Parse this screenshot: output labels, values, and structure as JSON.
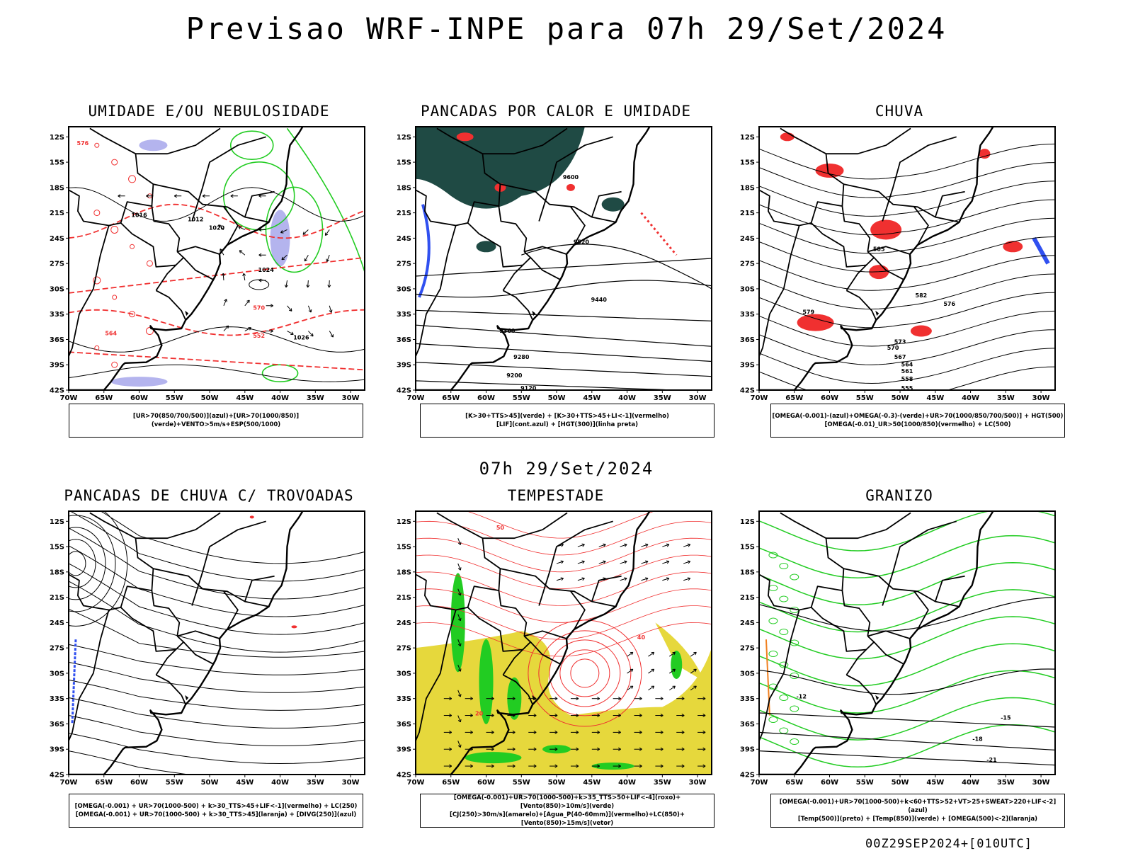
{
  "title": "Previsao WRF-INPE  para 07h 29/Set/2024",
  "mid_title": "07h 29/Set/2024",
  "footer": "00Z29SEP2024+[010UTC]",
  "axes": {
    "lat_labels": [
      "12S",
      "15S",
      "18S",
      "21S",
      "24S",
      "27S",
      "30S",
      "33S",
      "36S",
      "39S",
      "42S"
    ],
    "lon_labels": [
      "70W",
      "65W",
      "60W",
      "55W",
      "50W",
      "45W",
      "40W",
      "35W",
      "30W"
    ]
  },
  "panels": [
    {
      "title": "UMIDADE E/OU NEBULOSIDADE",
      "legend": [
        "[UR>70(850/700/500)](azul)+[UR>70(1000/850)](verde)+VENTO>5m/s+ESP(500/1000)"
      ],
      "contour_labels": [
        "1012",
        "1016",
        "1020",
        "1024",
        "1026",
        "564",
        "570",
        "576",
        "552"
      ]
    },
    {
      "title": "PANCADAS POR CALOR E UMIDADE",
      "legend": [
        "[K>30+TTS>45](verde) + [K>30+TTS>45+LI<-1](vermelho)",
        "[LIF](cont.azul) + [HGT(300)](linha preta)"
      ],
      "contour_labels": [
        "9600",
        "9520",
        "9440",
        "9360",
        "9280",
        "9200",
        "9120"
      ]
    },
    {
      "title": "CHUVA",
      "legend": [
        "[OMEGA(-0.001)-(azul)+OMEGA(-0.3)-(verde)+UR>70(1000/850/700/500)] + HGT(500)",
        "[OMEGA(-0.01)_UR>50(1000/850)(vermelho) + LC(500)"
      ],
      "contour_labels": [
        "585",
        "582",
        "579",
        "576",
        "573",
        "570",
        "567",
        "564",
        "561",
        "558",
        "555"
      ]
    },
    {
      "title": "PANCADAS DE CHUVA C/ TROVOADAS",
      "legend": [
        "[OMEGA(-0.001) + UR>70(1000-500) + k>30_TTS>45+LIF<-1](vermelho) + LC(250)",
        "[OMEGA(-0.001) + UR>70(1000-500) + k>30_TTS>45](laranja) + [DIVG(250)](azul)"
      ],
      "contour_labels": []
    },
    {
      "title": "TEMPESTADE",
      "legend": [
        "[OMEGA(-0.001)+UR>70(1000-500)+k>35_TTS>50+LIF<-4](roxo)+[Vento(850)>10m/s](verde)",
        "[CJ(250)>30m/s](amarelo)+[Agua_P(40-60mm)](vermelho)+LC(850)+[Vento(850)>15m/s](vetor)"
      ],
      "contour_labels": [
        "40",
        "50",
        "20"
      ]
    },
    {
      "title": "GRANIZO",
      "legend": [
        "[OMEGA(-0.001)+UR>70(1000-500)+k<60+TTS>52+VT>25+SWEAT>220+LIF<-2](azul)",
        "[Temp(500)](preto) + [Temp(850)](verde) + [OMEGA(500)<-2](laranja)"
      ],
      "contour_labels": [
        "-12",
        "-15",
        "-18",
        "-21"
      ]
    }
  ],
  "colors": {
    "red": "#f03030",
    "blue": "#3050f0",
    "green": "#22cc22",
    "dark_teal": "#1f4a44",
    "yellow": "#e6d83c",
    "lavender": "#b4b4ee",
    "orange": "#f08020",
    "black": "#000000"
  }
}
